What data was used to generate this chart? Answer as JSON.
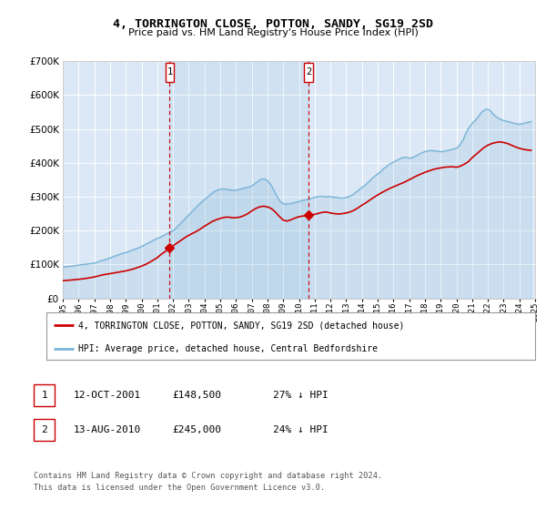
{
  "title": "4, TORRINGTON CLOSE, POTTON, SANDY, SG19 2SD",
  "subtitle": "Price paid vs. HM Land Registry's House Price Index (HPI)",
  "ylim": [
    0,
    700000
  ],
  "yticks": [
    0,
    100000,
    200000,
    300000,
    400000,
    500000,
    600000,
    700000
  ],
  "ytick_labels": [
    "£0",
    "£100K",
    "£200K",
    "£300K",
    "£400K",
    "£500K",
    "£600K",
    "£700K"
  ],
  "background_color": "#ffffff",
  "plot_bg_color": "#dce8f5",
  "grid_color": "#ffffff",
  "hpi_color": "#7ab4d8",
  "price_color": "#cc0000",
  "annotation_line_color": "#cc0000",
  "legend_house_label": "4, TORRINGTON CLOSE, POTTON, SANDY, SG19 2SD (detached house)",
  "legend_hpi_label": "HPI: Average price, detached house, Central Bedfordshire",
  "sale1_date": "12-OCT-2001",
  "sale1_price": "£148,500",
  "sale1_pct": "27% ↓ HPI",
  "sale2_date": "13-AUG-2010",
  "sale2_price": "£245,000",
  "sale2_pct": "24% ↓ HPI",
  "footer": "Contains HM Land Registry data © Crown copyright and database right 2024.\nThis data is licensed under the Open Government Licence v3.0.",
  "x_start_year": 1995,
  "x_end_year": 2025,
  "sale1_year": 2001.783,
  "sale1_value": 148500,
  "sale2_year": 2010.617,
  "sale2_value": 245000,
  "annotation_box_color": "#ffffff",
  "annotation_box_edge": "#cc0000",
  "hpi_years": [
    1995.0,
    1995.08,
    1995.17,
    1995.25,
    1995.33,
    1995.42,
    1995.5,
    1995.58,
    1995.67,
    1995.75,
    1995.83,
    1995.92,
    1996.0,
    1996.08,
    1996.17,
    1996.25,
    1996.33,
    1996.42,
    1996.5,
    1996.58,
    1996.67,
    1996.75,
    1996.83,
    1996.92,
    1997.0,
    1997.08,
    1997.17,
    1997.25,
    1997.33,
    1997.42,
    1997.5,
    1997.58,
    1997.67,
    1997.75,
    1997.83,
    1997.92,
    1998.0,
    1998.08,
    1998.17,
    1998.25,
    1998.33,
    1998.42,
    1998.5,
    1998.58,
    1998.67,
    1998.75,
    1998.83,
    1998.92,
    1999.0,
    1999.08,
    1999.17,
    1999.25,
    1999.33,
    1999.42,
    1999.5,
    1999.58,
    1999.67,
    1999.75,
    1999.83,
    1999.92,
    2000.0,
    2000.08,
    2000.17,
    2000.25,
    2000.33,
    2000.42,
    2000.5,
    2000.58,
    2000.67,
    2000.75,
    2000.83,
    2000.92,
    2001.0,
    2001.08,
    2001.17,
    2001.25,
    2001.33,
    2001.42,
    2001.5,
    2001.58,
    2001.67,
    2001.75,
    2001.83,
    2001.92,
    2002.0,
    2002.08,
    2002.17,
    2002.25,
    2002.33,
    2002.42,
    2002.5,
    2002.58,
    2002.67,
    2002.75,
    2002.83,
    2002.92,
    2003.0,
    2003.08,
    2003.17,
    2003.25,
    2003.33,
    2003.42,
    2003.5,
    2003.58,
    2003.67,
    2003.75,
    2003.83,
    2003.92,
    2004.0,
    2004.08,
    2004.17,
    2004.25,
    2004.33,
    2004.42,
    2004.5,
    2004.58,
    2004.67,
    2004.75,
    2004.83,
    2004.92,
    2005.0,
    2005.08,
    2005.17,
    2005.25,
    2005.33,
    2005.42,
    2005.5,
    2005.58,
    2005.67,
    2005.75,
    2005.83,
    2005.92,
    2006.0,
    2006.08,
    2006.17,
    2006.25,
    2006.33,
    2006.42,
    2006.5,
    2006.58,
    2006.67,
    2006.75,
    2006.83,
    2006.92,
    2007.0,
    2007.08,
    2007.17,
    2007.25,
    2007.33,
    2007.42,
    2007.5,
    2007.58,
    2007.67,
    2007.75,
    2007.83,
    2007.92,
    2008.0,
    2008.08,
    2008.17,
    2008.25,
    2008.33,
    2008.42,
    2008.5,
    2008.58,
    2008.67,
    2008.75,
    2008.83,
    2008.92,
    2009.0,
    2009.08,
    2009.17,
    2009.25,
    2009.33,
    2009.42,
    2009.5,
    2009.58,
    2009.67,
    2009.75,
    2009.83,
    2009.92,
    2010.0,
    2010.08,
    2010.17,
    2010.25,
    2010.33,
    2010.42,
    2010.5,
    2010.58,
    2010.67,
    2010.75,
    2010.83,
    2010.92,
    2011.0,
    2011.08,
    2011.17,
    2011.25,
    2011.33,
    2011.42,
    2011.5,
    2011.58,
    2011.67,
    2011.75,
    2011.83,
    2011.92,
    2012.0,
    2012.08,
    2012.17,
    2012.25,
    2012.33,
    2012.42,
    2012.5,
    2012.58,
    2012.67,
    2012.75,
    2012.83,
    2012.92,
    2013.0,
    2013.08,
    2013.17,
    2013.25,
    2013.33,
    2013.42,
    2013.5,
    2013.58,
    2013.67,
    2013.75,
    2013.83,
    2013.92,
    2014.0,
    2014.08,
    2014.17,
    2014.25,
    2014.33,
    2014.42,
    2014.5,
    2014.58,
    2014.67,
    2014.75,
    2014.83,
    2014.92,
    2015.0,
    2015.08,
    2015.17,
    2015.25,
    2015.33,
    2015.42,
    2015.5,
    2015.58,
    2015.67,
    2015.75,
    2015.83,
    2015.92,
    2016.0,
    2016.08,
    2016.17,
    2016.25,
    2016.33,
    2016.42,
    2016.5,
    2016.58,
    2016.67,
    2016.75,
    2016.83,
    2016.92,
    2017.0,
    2017.08,
    2017.17,
    2017.25,
    2017.33,
    2017.42,
    2017.5,
    2017.58,
    2017.67,
    2017.75,
    2017.83,
    2017.92,
    2018.0,
    2018.08,
    2018.17,
    2018.25,
    2018.33,
    2018.42,
    2018.5,
    2018.58,
    2018.67,
    2018.75,
    2018.83,
    2018.92,
    2019.0,
    2019.08,
    2019.17,
    2019.25,
    2019.33,
    2019.42,
    2019.5,
    2019.58,
    2019.67,
    2019.75,
    2019.83,
    2019.92,
    2020.0,
    2020.08,
    2020.17,
    2020.25,
    2020.33,
    2020.42,
    2020.5,
    2020.58,
    2020.67,
    2020.75,
    2020.83,
    2020.92,
    2021.0,
    2021.08,
    2021.17,
    2021.25,
    2021.33,
    2021.42,
    2021.5,
    2021.58,
    2021.67,
    2021.75,
    2021.83,
    2021.92,
    2022.0,
    2022.08,
    2022.17,
    2022.25,
    2022.33,
    2022.42,
    2022.5,
    2022.58,
    2022.67,
    2022.75,
    2022.83,
    2022.92,
    2023.0,
    2023.08,
    2023.17,
    2023.25,
    2023.33,
    2023.42,
    2023.5,
    2023.58,
    2023.67,
    2023.75,
    2023.83,
    2023.92,
    2024.0,
    2024.08,
    2024.17,
    2024.25,
    2024.33,
    2024.42,
    2024.5,
    2024.58,
    2024.67,
    2024.75
  ],
  "hpi_values": [
    92000,
    92500,
    93000,
    93500,
    94000,
    94500,
    95000,
    95500,
    96000,
    96500,
    97000,
    97500,
    98000,
    98500,
    99000,
    99500,
    100000,
    100500,
    101000,
    101500,
    102000,
    102500,
    103000,
    103500,
    104000,
    105000,
    106500,
    108000,
    109500,
    111000,
    112000,
    113000,
    114000,
    115000,
    116500,
    118000,
    119000,
    120500,
    122000,
    123500,
    125000,
    126500,
    128000,
    129500,
    131000,
    132500,
    133000,
    134000,
    135000,
    136500,
    138000,
    139500,
    141000,
    142500,
    144000,
    145000,
    146500,
    148000,
    149500,
    151000,
    153000,
    155000,
    157000,
    159000,
    161000,
    163000,
    165000,
    167000,
    169000,
    171000,
    173000,
    175000,
    177000,
    178500,
    180000,
    182000,
    184000,
    186000,
    188000,
    190000,
    192000,
    194000,
    196000,
    198000,
    200000,
    203000,
    206000,
    210000,
    214000,
    218000,
    222000,
    226000,
    230000,
    234000,
    238000,
    242000,
    246000,
    250000,
    254000,
    258000,
    262000,
    266000,
    270000,
    274000,
    278000,
    282000,
    285000,
    288000,
    291000,
    295000,
    298000,
    301000,
    305000,
    308000,
    311000,
    314000,
    316000,
    318000,
    320000,
    321000,
    322000,
    322500,
    323000,
    322500,
    322000,
    321500,
    321000,
    320500,
    320000,
    319500,
    319000,
    318500,
    319000,
    320000,
    321000,
    322000,
    323000,
    324000,
    325000,
    326000,
    327000,
    328000,
    329000,
    330000,
    332000,
    334000,
    337000,
    340000,
    343000,
    346000,
    349000,
    351000,
    352000,
    352500,
    352000,
    350000,
    347000,
    343000,
    338000,
    332000,
    325000,
    318000,
    310000,
    303000,
    296000,
    290000,
    285000,
    282000,
    280000,
    279000,
    278500,
    278000,
    278500,
    279000,
    280000,
    281000,
    282000,
    283000,
    284000,
    285000,
    286000,
    287000,
    288000,
    289000,
    290000,
    291000,
    292000,
    293000,
    294000,
    295000,
    296000,
    297000,
    298000,
    299000,
    300000,
    300500,
    301000,
    301000,
    301000,
    300500,
    300000,
    300000,
    300500,
    301000,
    300000,
    299500,
    299000,
    298500,
    298000,
    297500,
    297000,
    296500,
    296000,
    296000,
    296500,
    297000,
    298000,
    299000,
    300000,
    302000,
    304000,
    306000,
    309000,
    312000,
    315000,
    318000,
    321000,
    324000,
    327000,
    330000,
    333000,
    336000,
    340000,
    343000,
    347000,
    351000,
    355000,
    358000,
    361000,
    364000,
    367000,
    370000,
    373000,
    377000,
    381000,
    384000,
    387000,
    390000,
    393000,
    396000,
    398000,
    400000,
    402000,
    404000,
    406000,
    408000,
    410000,
    412000,
    414000,
    415000,
    416000,
    416500,
    416000,
    415000,
    414000,
    414000,
    415000,
    416000,
    418000,
    420000,
    422000,
    424000,
    426000,
    428000,
    430000,
    432000,
    433000,
    434000,
    435000,
    435500,
    436000,
    436000,
    436000,
    435500,
    435000,
    434500,
    434000,
    433500,
    433000,
    433000,
    433500,
    434000,
    435000,
    436000,
    437000,
    438000,
    439000,
    440000,
    441000,
    442000,
    443000,
    446000,
    450000,
    455000,
    461000,
    468000,
    476000,
    485000,
    493000,
    500000,
    506000,
    511000,
    516000,
    520000,
    524000,
    528000,
    533000,
    538000,
    543000,
    548000,
    552000,
    555000,
    557000,
    558000,
    558000,
    556000,
    553000,
    549000,
    544000,
    540000,
    537000,
    534000,
    532000,
    530000,
    528000,
    526000,
    525000,
    524000,
    523000,
    522000,
    521000,
    520000,
    519000,
    518000,
    517000,
    516000,
    515000,
    514000,
    514000,
    514500,
    515000,
    516000,
    517000,
    518000,
    519000,
    520000,
    521000,
    522000
  ],
  "price_years": [
    1995.0,
    1995.25,
    1995.5,
    1995.75,
    1996.0,
    1996.25,
    1996.5,
    1996.75,
    1997.0,
    1997.25,
    1997.5,
    1997.75,
    1998.0,
    1998.25,
    1998.5,
    1998.75,
    1999.0,
    1999.25,
    1999.5,
    1999.75,
    2000.0,
    2000.25,
    2000.5,
    2000.75,
    2001.0,
    2001.25,
    2001.5,
    2001.783,
    2002.0,
    2002.25,
    2002.5,
    2002.75,
    2003.0,
    2003.25,
    2003.5,
    2003.75,
    2004.0,
    2004.25,
    2004.5,
    2004.75,
    2005.0,
    2005.25,
    2005.5,
    2005.75,
    2006.0,
    2006.25,
    2006.5,
    2006.75,
    2007.0,
    2007.25,
    2007.5,
    2007.75,
    2008.0,
    2008.25,
    2008.5,
    2008.75,
    2009.0,
    2009.25,
    2009.5,
    2009.75,
    2010.0,
    2010.25,
    2010.617,
    2010.75,
    2011.0,
    2011.25,
    2011.5,
    2011.75,
    2012.0,
    2012.25,
    2012.5,
    2012.75,
    2013.0,
    2013.25,
    2013.5,
    2013.75,
    2014.0,
    2014.25,
    2014.5,
    2014.75,
    2015.0,
    2015.25,
    2015.5,
    2015.75,
    2016.0,
    2016.25,
    2016.5,
    2016.75,
    2017.0,
    2017.25,
    2017.5,
    2017.75,
    2018.0,
    2018.25,
    2018.5,
    2018.75,
    2019.0,
    2019.25,
    2019.5,
    2019.75,
    2020.0,
    2020.25,
    2020.5,
    2020.75,
    2021.0,
    2021.25,
    2021.5,
    2021.75,
    2022.0,
    2022.25,
    2022.5,
    2022.75,
    2023.0,
    2023.25,
    2023.5,
    2023.75,
    2024.0,
    2024.25,
    2024.5,
    2024.75
  ],
  "price_values": [
    52000,
    53000,
    54000,
    55000,
    56000,
    57500,
    59000,
    61000,
    63000,
    66000,
    69000,
    71000,
    73000,
    75000,
    77000,
    79000,
    81000,
    84000,
    87000,
    91000,
    95000,
    100000,
    106000,
    113000,
    120000,
    130000,
    138000,
    148500,
    155000,
    163000,
    171000,
    179000,
    186000,
    192000,
    198000,
    205000,
    213000,
    220000,
    227000,
    232000,
    236000,
    239000,
    240000,
    238000,
    238000,
    240000,
    244000,
    250000,
    258000,
    265000,
    270000,
    272000,
    270000,
    265000,
    255000,
    242000,
    231000,
    228000,
    232000,
    237000,
    241000,
    243000,
    245000,
    246000,
    248000,
    251000,
    254000,
    255000,
    252000,
    250000,
    249000,
    250000,
    252000,
    255000,
    260000,
    267000,
    275000,
    282000,
    290000,
    298000,
    305000,
    312000,
    318000,
    324000,
    329000,
    334000,
    339000,
    344000,
    350000,
    356000,
    362000,
    367000,
    372000,
    376000,
    380000,
    383000,
    385000,
    387000,
    388000,
    388500,
    387000,
    390000,
    396000,
    403000,
    415000,
    425000,
    435000,
    445000,
    452000,
    457000,
    460000,
    462000,
    460000,
    457000,
    452000,
    447000,
    443000,
    440000,
    438000,
    437000
  ]
}
